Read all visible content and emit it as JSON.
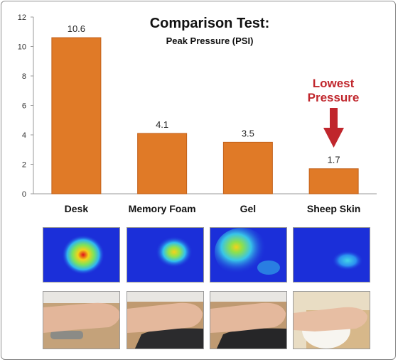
{
  "chart_data": {
    "type": "bar",
    "title": "Comparison Test:",
    "subtitle": "Peak Pressure (PSI)",
    "categories": [
      "Desk",
      "Memory Foam",
      "Gel",
      "Sheep Skin"
    ],
    "values": [
      10.6,
      4.1,
      3.5,
      1.7
    ],
    "data_labels": [
      "10.6",
      "4.1",
      "3.5",
      "1.7"
    ],
    "ylim": [
      0,
      12
    ],
    "yticks": [
      0,
      2,
      4,
      6,
      8,
      10,
      12
    ],
    "ytick_labels": [
      "0",
      "2",
      "4",
      "6",
      "8",
      "10",
      "12"
    ],
    "grid": false,
    "colors": {
      "bar": "#e07a27",
      "bar_edge": "#c2611a",
      "callout": "#c0262c",
      "axis": "#9a9a9a"
    }
  },
  "annotation": {
    "line1": "Lowest",
    "line2": "Pressure",
    "target_category": "Sheep Skin"
  },
  "pressure_maps": [
    {
      "category": "Desk",
      "intensity": "very high"
    },
    {
      "category": "Memory Foam",
      "intensity": "medium"
    },
    {
      "category": "Gel",
      "intensity": "medium"
    },
    {
      "category": "Sheep Skin",
      "intensity": "low"
    }
  ],
  "photos": [
    {
      "category": "Desk",
      "icon": "hand-on-wrist-rest-photo"
    },
    {
      "category": "Memory Foam",
      "icon": "hand-on-wrist-rest-photo"
    },
    {
      "category": "Gel",
      "icon": "hand-on-wrist-rest-photo"
    },
    {
      "category": "Sheep Skin",
      "icon": "hand-on-wrist-rest-photo"
    }
  ]
}
